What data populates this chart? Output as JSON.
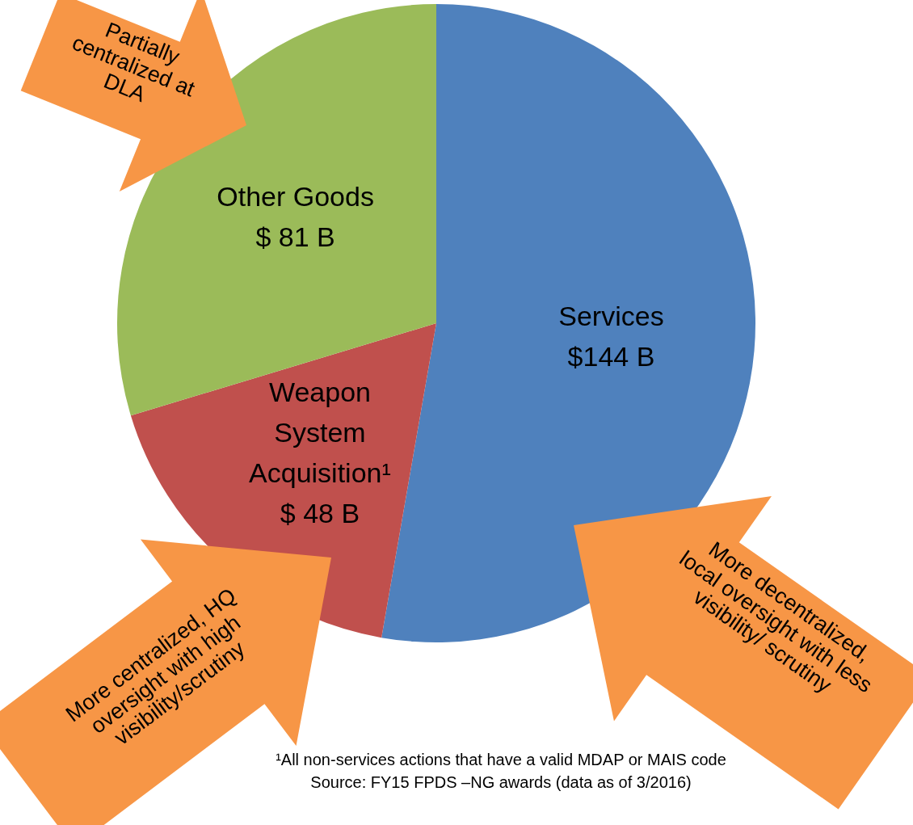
{
  "chart_data": {
    "type": "pie",
    "categories": [
      "Services",
      "Weapon System Acquisition¹",
      "Other Goods"
    ],
    "values": [
      144,
      48,
      81
    ],
    "colors": [
      "#4f81bd",
      "#c0504d",
      "#9bbb59"
    ],
    "value_labels": [
      "$144 B",
      "$ 48 B",
      "$ 81 B"
    ],
    "legend": false,
    "annotations": [
      "Partially centralized at DLA",
      "More centralized, HQ oversight with high visibility/scrutiny",
      "More decentralized, local oversight with less visibility/ scrutiny",
      "¹All non-services actions that have a valid MDAP or MAIS code",
      "Source:  FY15 FPDS –NG awards (data as of 3/2016)"
    ]
  }
}
